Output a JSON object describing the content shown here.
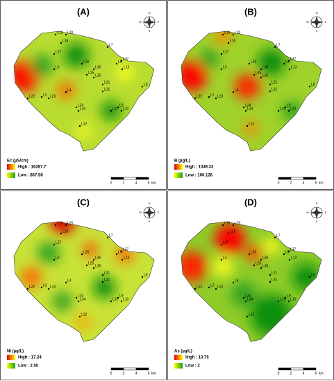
{
  "panels": [
    {
      "label": "(A)",
      "legend": {
        "title": "Ec (µS/cm)",
        "high": "High : 16287.7",
        "low": "Low : 867.58"
      }
    },
    {
      "label": "(B)",
      "legend": {
        "title": "B (µg/L)",
        "high": "High : 1049.33",
        "low": "Low : 100.126"
      }
    },
    {
      "label": "(C)",
      "legend": {
        "title": "Ni (µg/L)",
        "high": "High : 17.24",
        "low": "Low : 2.50"
      }
    },
    {
      "label": "(D)",
      "legend": {
        "title": "As (µg/L)",
        "high": "High : 10.75",
        "low": "Low : 2"
      }
    }
  ],
  "scale": {
    "ticks": [
      "0",
      "2",
      "4",
      "6"
    ],
    "unit": "km"
  },
  "compass": [
    "N",
    "E",
    "S",
    "W"
  ],
  "stations": [
    "L19",
    "L20",
    "L18",
    "L7",
    "L27",
    "L37",
    "L5",
    "L26",
    "L36",
    "L3",
    "L25",
    "L35",
    "L8",
    "L22",
    "L23",
    "L21",
    "L31",
    "L4",
    "L24",
    "L34",
    "L9",
    "L11",
    "L10",
    "L12",
    "L13",
    "L2"
  ]
}
